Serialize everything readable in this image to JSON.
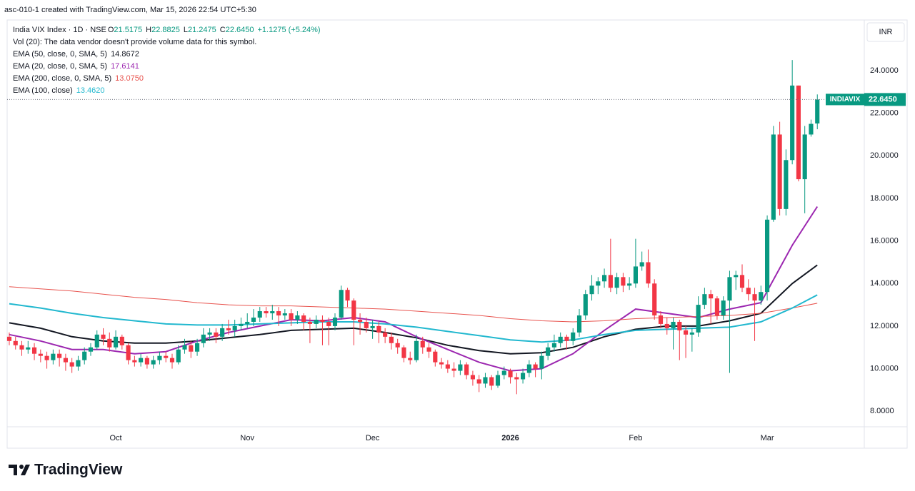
{
  "header": {
    "caption": "asc-010-1 created with TradingView.com, Mar 15, 2026 22:54 UTC+5:30",
    "watermark": "TradingView"
  },
  "chart_data": {
    "type": "candlestick",
    "symbol": "India VIX Index · 1D · NSE",
    "ohlc_legend": [
      {
        "key": "O",
        "value": "21.5175"
      },
      {
        "key": "H",
        "value": "22.8825"
      },
      {
        "key": "L",
        "value": "21.2475"
      },
      {
        "key": "C",
        "value": "22.6450"
      }
    ],
    "change": "+1.1275 (+5.24%)",
    "volume_note": "Vol (20): The data vendor doesn't provide volume data for this symbol.",
    "currency": "INR",
    "symbol_short": "INDIAVIX",
    "last_price_label": "22.6450",
    "up_color": "#089981",
    "down_color": "#f23645",
    "xlim": [
      -0.34,
      136.5
    ],
    "xticks": [
      {
        "value": 17,
        "label": "Oct"
      },
      {
        "value": 38,
        "label": "Nov"
      },
      {
        "value": 58,
        "label": "Dec"
      },
      {
        "value": 80,
        "label": "2026"
      },
      {
        "value": 100,
        "label": "Feb"
      },
      {
        "value": 121,
        "label": "Mar"
      }
    ],
    "ylim": [
      7.27,
      26.38
    ],
    "yticks": [
      {
        "value": 8,
        "label": "8.0000"
      },
      {
        "value": 10,
        "label": "10.0000"
      },
      {
        "value": 12,
        "label": "12.0000"
      },
      {
        "value": 14,
        "label": "14.0000"
      },
      {
        "value": 16,
        "label": "16.0000"
      },
      {
        "value": 18,
        "label": "18.0000"
      },
      {
        "value": 20,
        "label": "20.0000"
      },
      {
        "value": 22,
        "label": "22.0000"
      },
      {
        "value": 24,
        "label": "24.0000"
      }
    ],
    "grid": false,
    "ohlc": [
      [
        11.5,
        11.7,
        11.1,
        11.3
      ],
      [
        11.3,
        11.5,
        10.9,
        11.1
      ],
      [
        11.1,
        11.3,
        10.6,
        10.9
      ],
      [
        10.9,
        11.3,
        10.7,
        11.0
      ],
      [
        11.0,
        11.2,
        10.4,
        10.7
      ],
      [
        10.7,
        10.9,
        10.3,
        10.6
      ],
      [
        10.6,
        10.8,
        10.0,
        10.4
      ],
      [
        10.4,
        10.9,
        10.2,
        10.7
      ],
      [
        10.7,
        10.9,
        10.1,
        10.5
      ],
      [
        10.5,
        10.7,
        9.9,
        10.3
      ],
      [
        10.3,
        10.5,
        9.8,
        10.1
      ],
      [
        10.1,
        10.6,
        9.9,
        10.4
      ],
      [
        10.4,
        11.0,
        10.2,
        10.8
      ],
      [
        10.8,
        11.2,
        10.6,
        11.0
      ],
      [
        11.0,
        11.8,
        10.9,
        11.6
      ],
      [
        11.6,
        11.9,
        11.1,
        11.4
      ],
      [
        11.4,
        11.7,
        10.8,
        11.0
      ],
      [
        11.0,
        11.8,
        10.9,
        11.5
      ],
      [
        11.5,
        11.6,
        10.9,
        11.1
      ],
      [
        11.1,
        11.2,
        10.2,
        10.4
      ],
      [
        10.4,
        10.6,
        10.1,
        10.3
      ],
      [
        10.3,
        10.7,
        10.1,
        10.5
      ],
      [
        10.5,
        10.6,
        10.0,
        10.2
      ],
      [
        10.2,
        10.6,
        10.0,
        10.4
      ],
      [
        10.4,
        10.8,
        10.2,
        10.6
      ],
      [
        10.6,
        10.8,
        10.3,
        10.5
      ],
      [
        10.5,
        10.7,
        10.0,
        10.3
      ],
      [
        10.3,
        11.1,
        10.2,
        10.9
      ],
      [
        10.9,
        11.4,
        10.7,
        11.1
      ],
      [
        11.1,
        11.3,
        10.5,
        10.8
      ],
      [
        10.8,
        11.4,
        10.6,
        11.2
      ],
      [
        11.2,
        11.9,
        11.0,
        11.6
      ],
      [
        11.6,
        11.9,
        11.3,
        11.7
      ],
      [
        11.7,
        11.9,
        11.2,
        11.5
      ],
      [
        11.5,
        12.1,
        11.3,
        11.9
      ],
      [
        11.9,
        12.3,
        11.6,
        11.8
      ],
      [
        11.8,
        12.3,
        11.5,
        12.0
      ],
      [
        12.0,
        12.4,
        11.8,
        12.1
      ],
      [
        12.1,
        12.6,
        11.9,
        12.2
      ],
      [
        12.2,
        12.8,
        12.0,
        12.4
      ],
      [
        12.4,
        12.9,
        12.2,
        12.7
      ],
      [
        12.7,
        12.9,
        12.4,
        12.6
      ],
      [
        12.6,
        13.0,
        12.3,
        12.7
      ],
      [
        12.7,
        12.9,
        12.0,
        12.5
      ],
      [
        12.5,
        12.8,
        12.3,
        12.6
      ],
      [
        12.6,
        12.8,
        12.0,
        12.3
      ],
      [
        12.3,
        12.7,
        12.1,
        12.5
      ],
      [
        12.5,
        12.6,
        11.8,
        12.2
      ],
      [
        12.2,
        12.4,
        11.2,
        12.1
      ],
      [
        12.1,
        12.5,
        11.9,
        12.3
      ],
      [
        12.3,
        12.5,
        11.1,
        12.2
      ],
      [
        12.2,
        12.4,
        11.1,
        12.0
      ],
      [
        12.0,
        12.6,
        11.8,
        12.4
      ],
      [
        12.4,
        13.9,
        12.3,
        13.7
      ],
      [
        13.7,
        13.8,
        12.9,
        13.2
      ],
      [
        13.2,
        13.3,
        11.1,
        12.3
      ],
      [
        12.3,
        12.6,
        11.6,
        12.2
      ],
      [
        12.2,
        12.4,
        11.7,
        11.9
      ],
      [
        11.9,
        12.3,
        11.4,
        12.0
      ],
      [
        12.0,
        12.2,
        11.2,
        11.7
      ],
      [
        11.7,
        11.9,
        11.2,
        11.5
      ],
      [
        11.5,
        11.7,
        10.9,
        11.2
      ],
      [
        11.2,
        11.4,
        10.7,
        11.0
      ],
      [
        11.0,
        11.1,
        10.3,
        10.5
      ],
      [
        10.5,
        10.8,
        10.2,
        10.4
      ],
      [
        10.4,
        11.6,
        10.3,
        11.3
      ],
      [
        11.3,
        11.5,
        10.7,
        11.0
      ],
      [
        11.0,
        11.2,
        10.5,
        10.8
      ],
      [
        10.8,
        10.9,
        10.1,
        10.3
      ],
      [
        10.3,
        10.5,
        10.0,
        10.2
      ],
      [
        10.2,
        10.4,
        9.8,
        10.0
      ],
      [
        10.0,
        10.3,
        9.6,
        9.9
      ],
      [
        9.9,
        10.4,
        9.7,
        10.2
      ],
      [
        10.2,
        10.3,
        9.5,
        9.7
      ],
      [
        9.7,
        9.9,
        9.2,
        9.5
      ],
      [
        9.5,
        9.7,
        8.9,
        9.3
      ],
      [
        9.3,
        9.8,
        9.1,
        9.6
      ],
      [
        9.6,
        9.7,
        9.0,
        9.2
      ],
      [
        9.2,
        9.9,
        9.1,
        9.7
      ],
      [
        9.7,
        10.1,
        9.5,
        9.9
      ],
      [
        9.9,
        10.0,
        9.3,
        9.6
      ],
      [
        9.6,
        9.8,
        8.8,
        9.5
      ],
      [
        9.5,
        10.0,
        9.3,
        9.8
      ],
      [
        9.8,
        10.4,
        9.6,
        10.2
      ],
      [
        10.2,
        10.3,
        9.6,
        10.0
      ],
      [
        10.0,
        10.8,
        9.5,
        10.6
      ],
      [
        10.6,
        11.2,
        10.4,
        11.0
      ],
      [
        11.0,
        11.6,
        10.8,
        11.2
      ],
      [
        11.2,
        11.7,
        11.0,
        11.5
      ],
      [
        11.5,
        11.6,
        10.9,
        11.3
      ],
      [
        11.3,
        11.9,
        11.1,
        11.7
      ],
      [
        11.7,
        12.8,
        11.5,
        12.5
      ],
      [
        12.5,
        13.7,
        12.3,
        13.5
      ],
      [
        13.5,
        14.4,
        13.2,
        13.9
      ],
      [
        13.9,
        14.3,
        13.5,
        14.1
      ],
      [
        14.1,
        14.7,
        13.8,
        14.4
      ],
      [
        14.4,
        16.1,
        13.6,
        13.8
      ],
      [
        13.8,
        14.5,
        13.5,
        14.3
      ],
      [
        14.3,
        14.5,
        13.6,
        13.9
      ],
      [
        13.9,
        14.3,
        13.7,
        14.0
      ],
      [
        14.0,
        16.1,
        13.8,
        14.8
      ],
      [
        14.8,
        15.5,
        14.6,
        15.0
      ],
      [
        15.0,
        15.6,
        13.8,
        14.0
      ],
      [
        14.0,
        14.2,
        12.3,
        12.5
      ],
      [
        12.5,
        12.7,
        11.9,
        12.1
      ],
      [
        12.1,
        12.4,
        11.6,
        11.9
      ],
      [
        11.9,
        12.4,
        10.9,
        12.2
      ],
      [
        12.2,
        12.3,
        10.4,
        11.8
      ],
      [
        11.8,
        12.0,
        10.5,
        11.6
      ],
      [
        11.6,
        11.9,
        10.8,
        11.7
      ],
      [
        11.7,
        13.4,
        11.5,
        13.0
      ],
      [
        13.0,
        13.8,
        12.8,
        13.5
      ],
      [
        13.5,
        13.7,
        12.1,
        13.3
      ],
      [
        13.3,
        13.4,
        12.3,
        12.5
      ],
      [
        12.5,
        13.4,
        12.3,
        13.2
      ],
      [
        13.2,
        14.6,
        9.8,
        14.3
      ],
      [
        14.3,
        14.6,
        13.7,
        14.4
      ],
      [
        14.4,
        14.9,
        13.6,
        13.8
      ],
      [
        13.8,
        14.2,
        13.2,
        13.5
      ],
      [
        13.5,
        13.8,
        11.3,
        13.2
      ],
      [
        13.2,
        13.9,
        13.0,
        13.6
      ],
      [
        13.6,
        17.2,
        13.2,
        17.0
      ],
      [
        17.0,
        21.4,
        16.9,
        21.0
      ],
      [
        21.0,
        21.6,
        17.2,
        17.5
      ],
      [
        17.5,
        20.3,
        17.2,
        19.8
      ],
      [
        19.8,
        24.5,
        19.6,
        23.3
      ],
      [
        23.3,
        23.3,
        18.8,
        18.9
      ],
      [
        18.9,
        21.4,
        17.3,
        21.0
      ],
      [
        21.0,
        21.7,
        20.9,
        21.5
      ],
      [
        21.5175,
        22.8825,
        21.2475,
        22.645
      ]
    ],
    "x": [
      0,
      5,
      10,
      15,
      20,
      25,
      30,
      35,
      40,
      45,
      50,
      55,
      60,
      65,
      70,
      75,
      80,
      85,
      90,
      95,
      100,
      105,
      110,
      115,
      120,
      125,
      129
    ],
    "series": [
      {
        "name": "EMA (50, close, 0, SMA, 5)",
        "color": "#131722",
        "last_label": "14.8672",
        "values": [
          12.15,
          11.9,
          11.5,
          11.3,
          11.2,
          11.2,
          11.3,
          11.45,
          11.6,
          11.8,
          11.85,
          11.9,
          11.7,
          11.45,
          11.1,
          10.85,
          10.7,
          10.75,
          11.0,
          11.5,
          11.85,
          12.0,
          12.0,
          12.25,
          12.6,
          14.0,
          14.8672
        ]
      },
      {
        "name": "EMA (20, close, 0, SMA, 5)",
        "color": "#9c27b0",
        "last_label": "17.6141",
        "values": [
          11.6,
          11.3,
          10.9,
          10.9,
          10.7,
          10.8,
          11.3,
          11.7,
          12.0,
          12.3,
          12.25,
          12.4,
          12.2,
          11.5,
          10.9,
          10.3,
          9.9,
          10.0,
          10.7,
          11.8,
          12.8,
          12.6,
          12.4,
          12.8,
          13.1,
          15.8,
          17.6141
        ]
      },
      {
        "name": "EMA (200, close, 0, SMA, 5)",
        "color": "#e8544f",
        "last_label": "13.0750",
        "values": [
          13.85,
          13.75,
          13.65,
          13.5,
          13.35,
          13.25,
          13.1,
          13.0,
          12.95,
          12.95,
          12.9,
          12.85,
          12.8,
          12.7,
          12.6,
          12.5,
          12.35,
          12.25,
          12.2,
          12.25,
          12.35,
          12.4,
          12.45,
          12.5,
          12.6,
          12.85,
          13.075
        ]
      },
      {
        "name": "EMA (100, close)",
        "color": "#22b8cf",
        "last_label": "13.4620",
        "values": [
          13.05,
          12.85,
          12.6,
          12.4,
          12.25,
          12.1,
          12.05,
          12.05,
          12.1,
          12.15,
          12.2,
          12.2,
          12.1,
          11.95,
          11.75,
          11.55,
          11.35,
          11.25,
          11.35,
          11.6,
          11.8,
          11.85,
          11.9,
          11.95,
          12.2,
          12.85,
          13.462
        ]
      }
    ]
  }
}
